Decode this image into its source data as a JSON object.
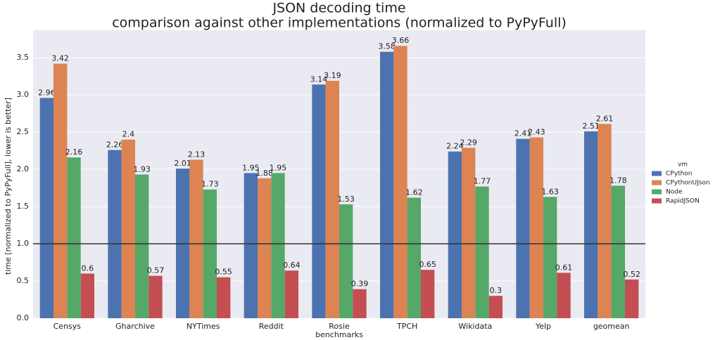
{
  "chart_data": {
    "type": "bar",
    "title": "JSON decoding time",
    "subtitle": "comparison against other implementations (normalized to PyPyFull)",
    "x_label": "benchmarks",
    "y_label": "time [normalized to PyPyFull], lower is better]",
    "categories": [
      "Censys",
      "Gharchive",
      "NYTimes",
      "Reddit",
      "Rosie",
      "TPCH",
      "Wikidata",
      "Yelp",
      "geomean"
    ],
    "series": [
      {
        "name": "CPython",
        "color": "#4c72b0",
        "values": [
          2.96,
          2.26,
          2.01,
          1.95,
          3.14,
          3.58,
          2.24,
          2.41,
          2.51
        ]
      },
      {
        "name": "CPythonUJson",
        "color": "#dd8452",
        "values": [
          3.42,
          2.4,
          2.13,
          1.88,
          3.19,
          3.66,
          2.29,
          2.43,
          2.61
        ]
      },
      {
        "name": "Node",
        "color": "#55a868",
        "values": [
          2.16,
          1.93,
          1.73,
          1.95,
          1.53,
          1.62,
          1.77,
          1.63,
          1.78
        ]
      },
      {
        "name": "RapidJSON",
        "color": "#c44e52",
        "values": [
          0.6,
          0.57,
          0.55,
          0.64,
          0.39,
          0.65,
          0.3,
          0.61,
          0.52
        ]
      }
    ],
    "legend_title": "vm",
    "legend_position": "right",
    "reference_line": 1,
    "ylim": [
      0,
      3.87
    ],
    "yticks": [
      {
        "value": 0,
        "label": "0.0"
      },
      0.5,
      {
        "value": 1,
        "label": "1.0"
      },
      1.5,
      {
        "value": 2,
        "label": "2.0"
      },
      2.5,
      {
        "value": 3,
        "label": "3.0"
      },
      3.5
    ],
    "grid": true
  }
}
